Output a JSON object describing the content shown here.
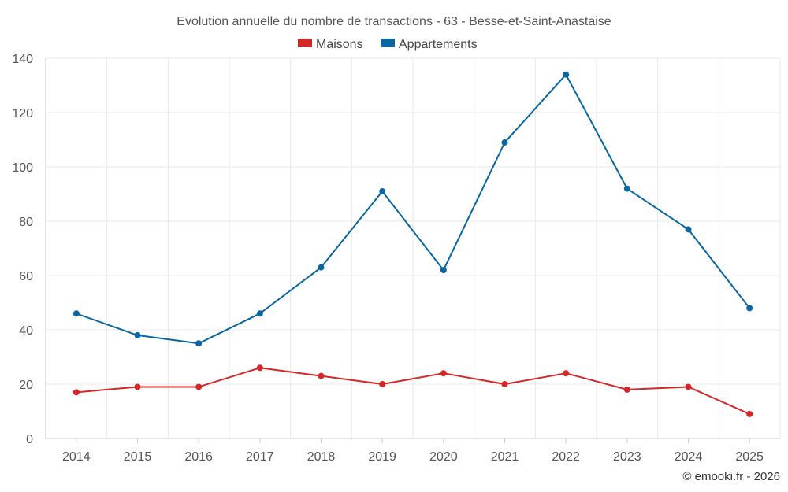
{
  "chart_data": {
    "type": "line",
    "title": "Evolution annuelle du nombre de transactions - 63 - Besse-et-Saint-Anastaise",
    "categories": [
      "2014",
      "2015",
      "2016",
      "2017",
      "2018",
      "2019",
      "2020",
      "2021",
      "2022",
      "2023",
      "2024",
      "2025"
    ],
    "series": [
      {
        "name": "Maisons",
        "color": "#d62728",
        "values": [
          17,
          19,
          19,
          26,
          23,
          20,
          24,
          20,
          24,
          18,
          19,
          9
        ]
      },
      {
        "name": "Appartements",
        "color": "#0a66a0",
        "values": [
          46,
          38,
          35,
          46,
          63,
          91,
          62,
          109,
          134,
          92,
          77,
          48
        ]
      }
    ],
    "ylim": [
      0,
      140
    ],
    "yticks": [
      0,
      20,
      40,
      60,
      80,
      100,
      120,
      140
    ],
    "xlabel": "",
    "ylabel": "",
    "grid": true,
    "legend_position": "top-center"
  },
  "credit": "© emooki.fr - 2026"
}
